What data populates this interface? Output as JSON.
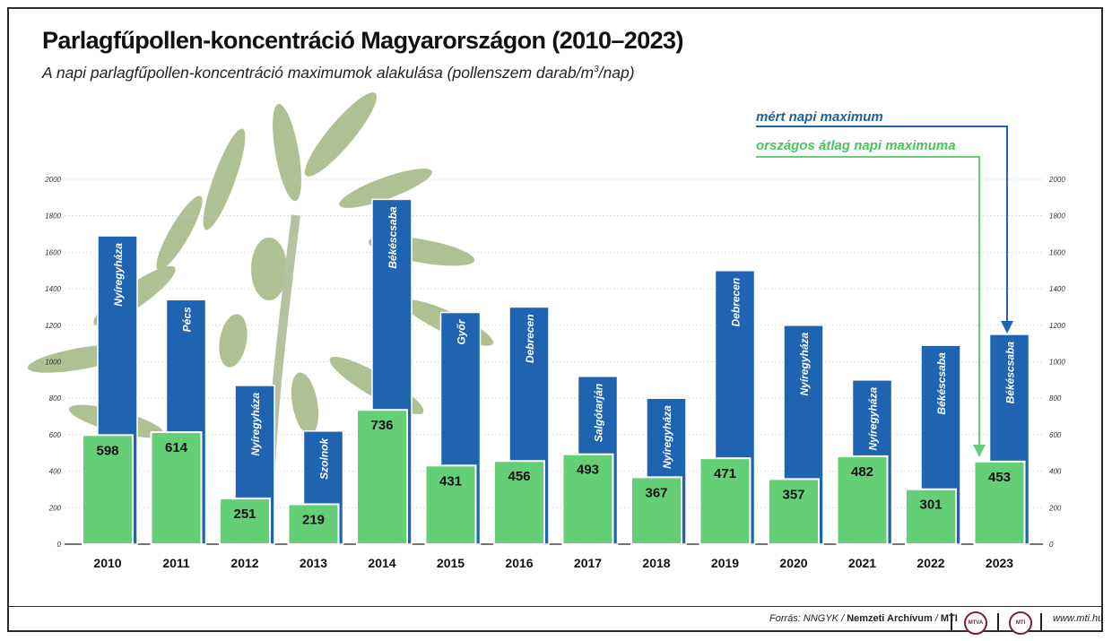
{
  "title": "Parlagfűpollen-koncentráció Magyarországon (2010–2023)",
  "subtitle_main": "A napi parlagfűpollen-koncentráció maximumok alakulása (pollenszem darab/m",
  "subtitle_sup": "3",
  "subtitle_end": "/nap)",
  "legend": {
    "measured": "mért napi maximum",
    "average": "országos átlag napi maximuma"
  },
  "colors": {
    "measured": "#1e64b0",
    "average": "#64cf77",
    "legend_measured_text": "#1f5fa8",
    "legend_average_text": "#4cc362"
  },
  "chart_data": {
    "type": "bar",
    "categories": [
      "2010",
      "2011",
      "2012",
      "2013",
      "2014",
      "2015",
      "2016",
      "2017",
      "2018",
      "2019",
      "2020",
      "2021",
      "2022",
      "2023"
    ],
    "series": [
      {
        "name": "mért napi maximum",
        "values": [
          1690,
          1340,
          870,
          620,
          1890,
          1270,
          1300,
          920,
          800,
          1500,
          1200,
          900,
          1090,
          1150
        ],
        "city_labels": [
          "Nyíregyháza",
          "Pécs",
          "Nyíregyháza",
          "Szolnok",
          "Békéscsaba",
          "Győr",
          "Debrecen",
          "Salgótarján",
          "Nyíregyháza",
          "Debrecen",
          "Nyíregyháza",
          "Nyíregyháza",
          "Békéscsaba",
          "Békéscsaba"
        ]
      },
      {
        "name": "országos átlag napi maximuma",
        "values": [
          598,
          614,
          251,
          219,
          736,
          431,
          456,
          493,
          367,
          471,
          357,
          482,
          301,
          453
        ]
      }
    ],
    "yticks": [
      "0",
      "200",
      "400",
      "600",
      "800",
      "1000",
      "1200",
      "1400",
      "1600",
      "1800",
      "2000"
    ],
    "ylim": [
      0,
      2000
    ],
    "grid": true,
    "legend_position": "top-right"
  },
  "footer": {
    "source_prefix": "Forrás: NNGYK / ",
    "source_bold": "Nemzeti Archívum",
    "source_sep": " / ",
    "source_mti": "MTI",
    "logo1": "MTVA",
    "logo2": "MTI",
    "website": "www.mti.hu"
  }
}
